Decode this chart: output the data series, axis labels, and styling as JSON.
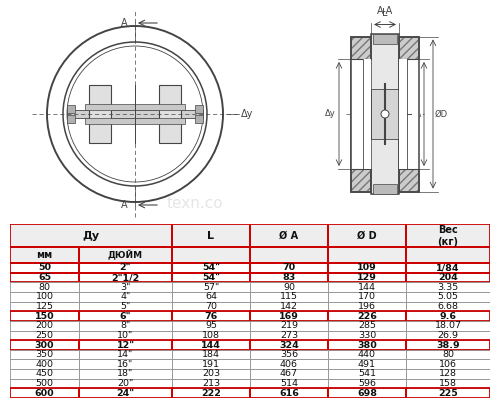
{
  "bg_color": "#ffffff",
  "lc": "#444444",
  "rows": [
    [
      "50",
      "2\"",
      "54\"",
      "70",
      "109",
      "1/84"
    ],
    [
      "65",
      "2\"1/2",
      "54\"",
      "83",
      "129",
      "204"
    ],
    [
      "80",
      "3\"",
      "57\"",
      "90",
      "144",
      "3.35"
    ],
    [
      "100",
      "4\"",
      "64",
      "115",
      "170",
      "5.05"
    ],
    [
      "125",
      "5\"",
      "70",
      "142",
      "196",
      "6.68"
    ],
    [
      "150",
      "6\"",
      "76",
      "169",
      "226",
      "9.6"
    ],
    [
      "200",
      "8\"",
      "95",
      "219",
      "285",
      "18.07"
    ],
    [
      "250",
      "10\"",
      "108",
      "273",
      "330",
      "26.9"
    ],
    [
      "300",
      "12\"",
      "144",
      "324",
      "380",
      "38.9"
    ],
    [
      "350",
      "14\"",
      "184",
      "356",
      "440",
      "80"
    ],
    [
      "400",
      "16\"",
      "191",
      "406",
      "491",
      "106"
    ],
    [
      "450",
      "18\"",
      "203",
      "467",
      "541",
      "128"
    ],
    [
      "500",
      "20\"",
      "213",
      "514",
      "596",
      "158"
    ],
    [
      "600",
      "24\"",
      "222",
      "616",
      "698",
      "225"
    ]
  ],
  "red_border_rows": [
    0,
    1,
    5,
    8,
    13
  ],
  "border_color": "#cc0000",
  "gray_border": "#999999",
  "header_bg": "#eeeeee"
}
